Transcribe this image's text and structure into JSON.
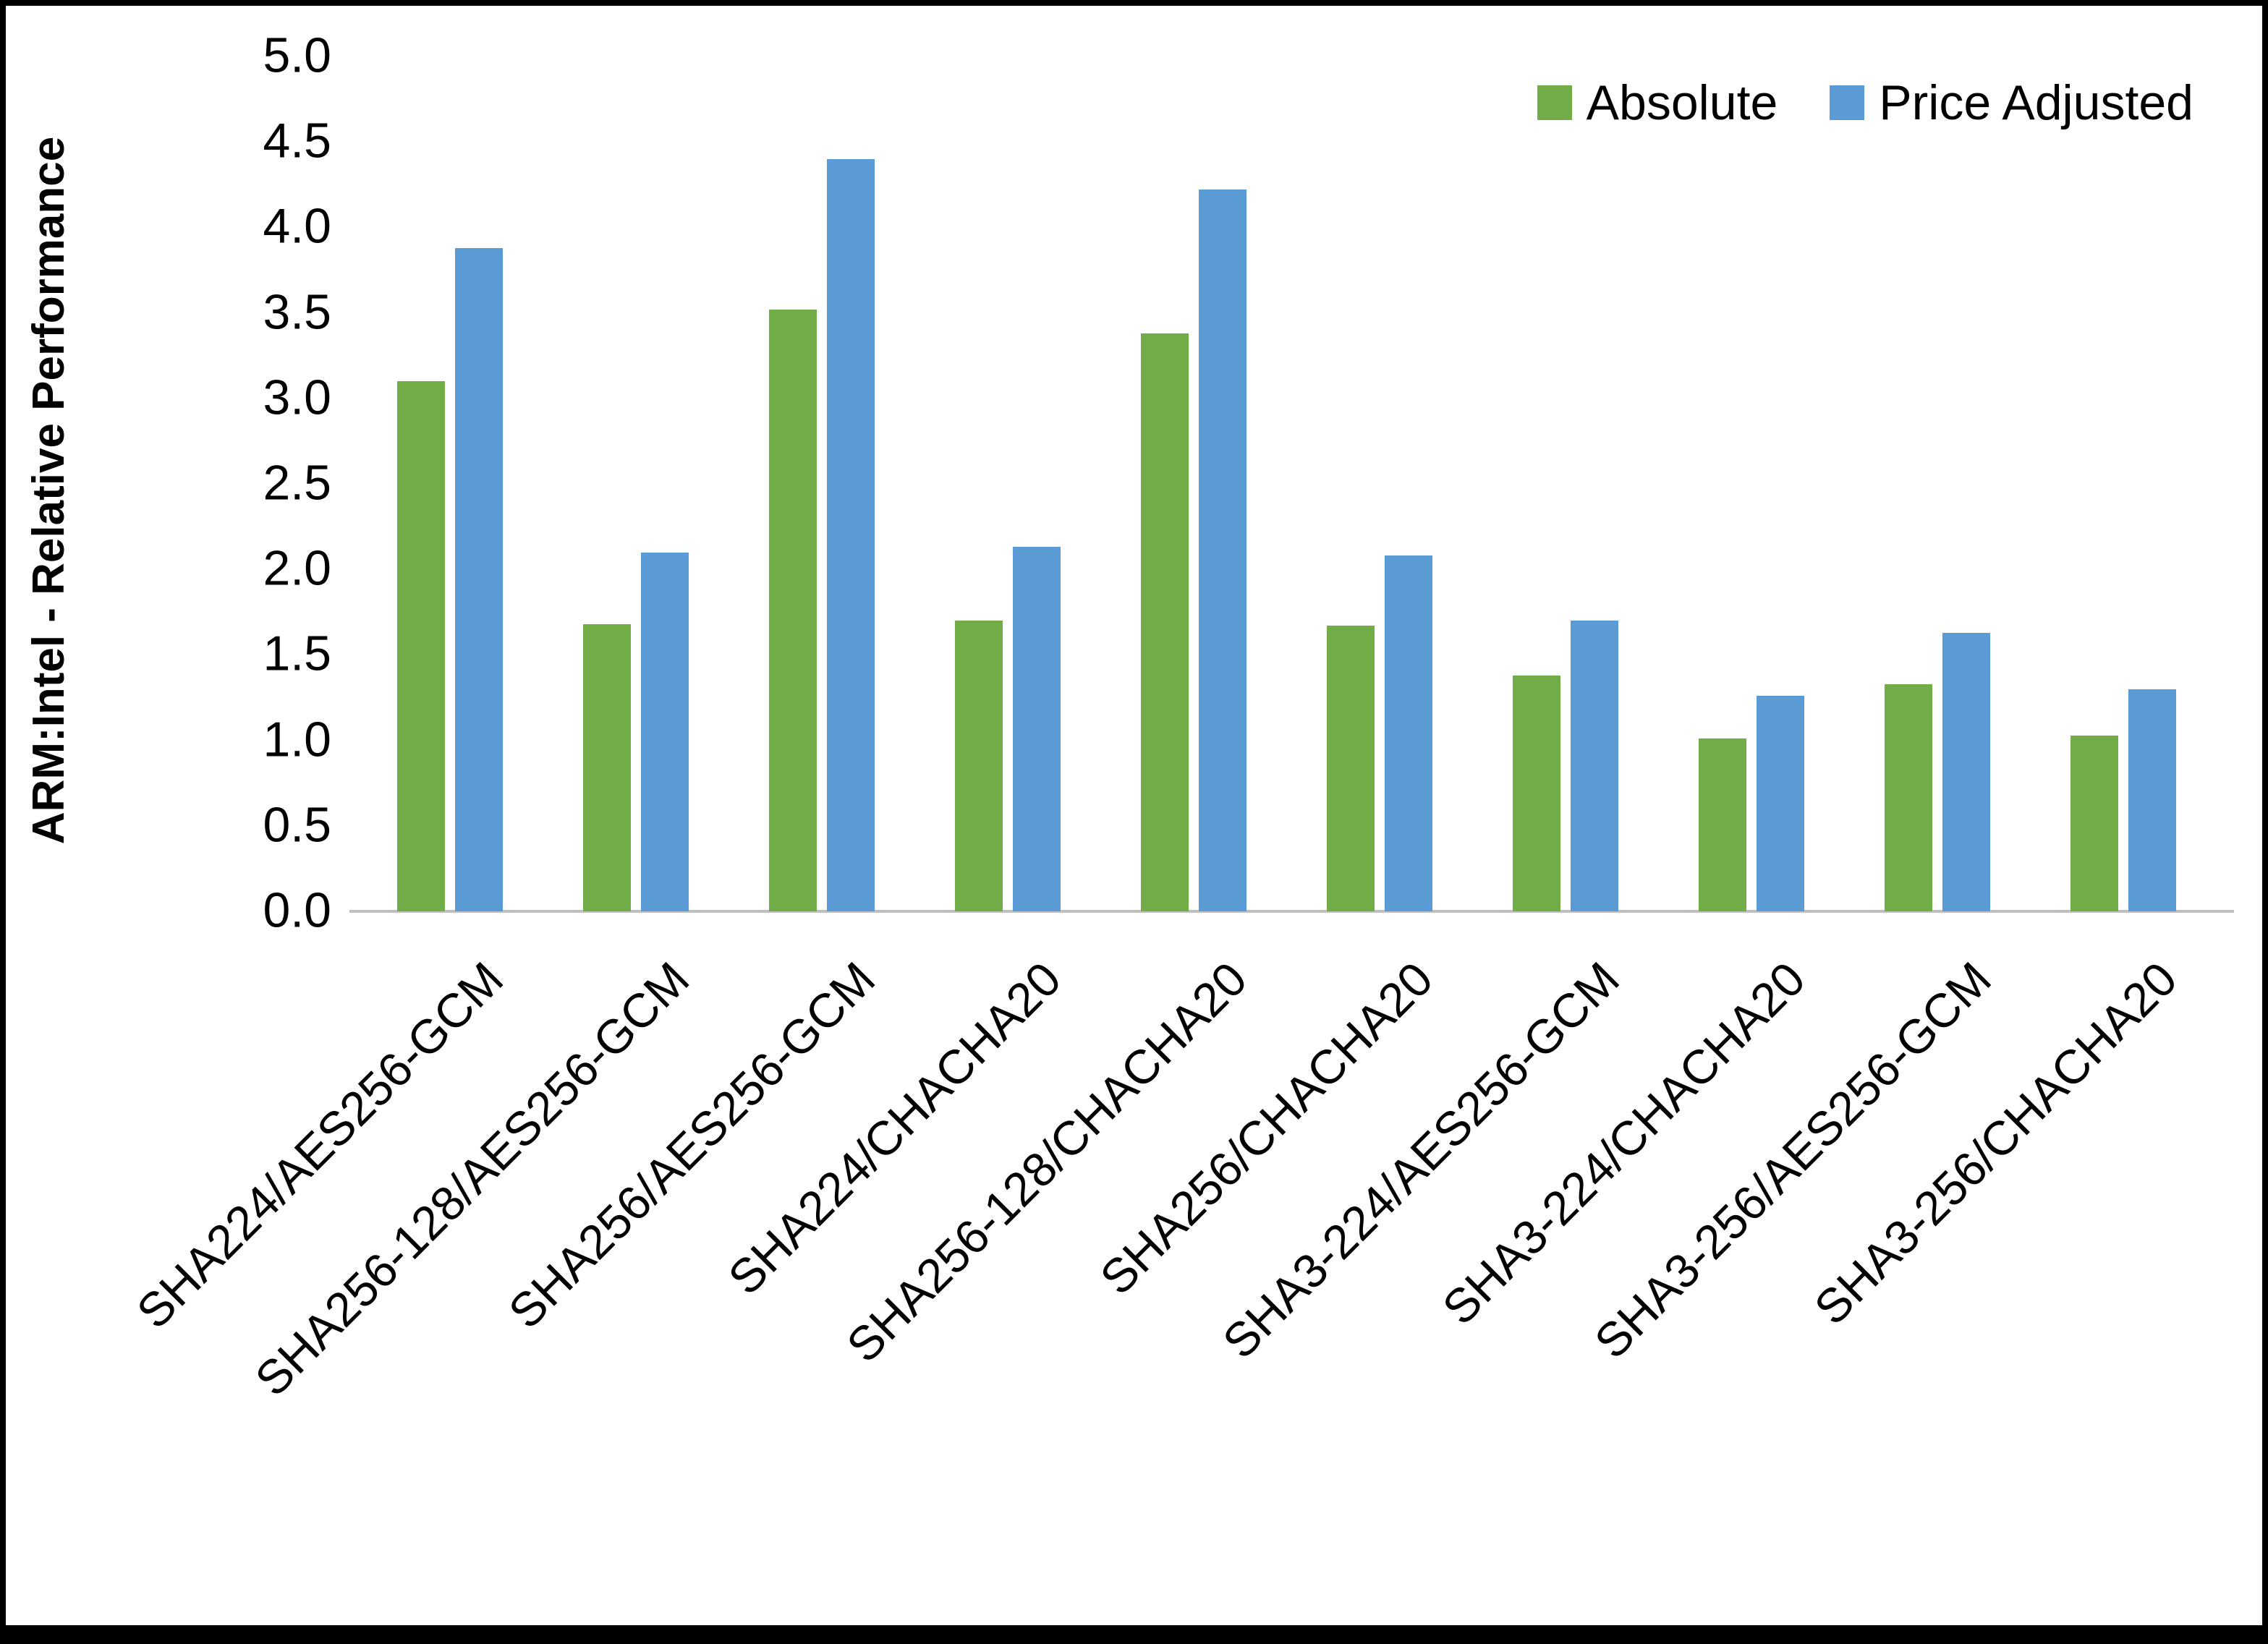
{
  "chart_data": {
    "type": "bar",
    "title": "",
    "xlabel": "",
    "ylabel": "ARM:Intel - Relative Performance",
    "ylim": [
      0,
      5
    ],
    "ytick_step": 0.5,
    "ytick_format_decimals": 1,
    "grid": false,
    "legend_position": "top-right",
    "axis_line_color": "#bfbfbf",
    "categories": [
      "SHA224/AES256-GCM",
      "SHA256-128/AES256-GCM",
      "SHA256/AES256-GCM",
      "SHA224/CHACHA20",
      "SHA256-128/CHACHA20",
      "SHA256/CHACHA20",
      "SHA3-224/AES256-GCM",
      "SHA3-224/CHACHA20",
      "SHA3-256/AES256-GCM",
      "SHA3-256/CHACHA20"
    ],
    "series": [
      {
        "name": "Absolute",
        "color": "#70AD47",
        "values": [
          3.1,
          1.68,
          3.52,
          1.7,
          3.38,
          1.67,
          1.38,
          1.01,
          1.33,
          1.03
        ]
      },
      {
        "name": "Price Adjusted",
        "color": "#5B9BD5",
        "values": [
          3.88,
          2.1,
          4.4,
          2.13,
          4.22,
          2.08,
          1.7,
          1.26,
          1.63,
          1.3
        ]
      }
    ]
  }
}
